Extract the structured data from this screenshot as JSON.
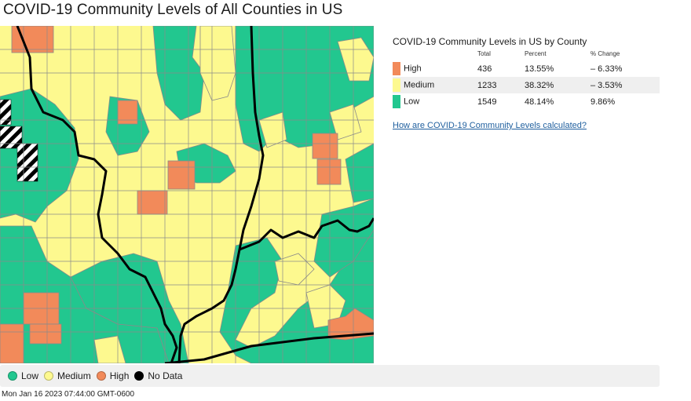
{
  "page": {
    "title": "COVID-19 Community Levels of All Counties in US"
  },
  "colors": {
    "high": "#f28a5a",
    "medium": "#fdf98f",
    "low": "#22c78f",
    "no_data": "#000000",
    "link": "#1f5f9e"
  },
  "summary": {
    "title": "COVID-19 Community Levels in US by County",
    "columns": [
      "Total",
      "Percent",
      "% Change"
    ],
    "rows": [
      {
        "level": "High",
        "total": "436",
        "percent": "13.55%",
        "change": "– 6.33%",
        "color": "#f28a5a"
      },
      {
        "level": "Medium",
        "total": "1233",
        "percent": "38.32%",
        "change": "– 3.53%",
        "color": "#fdf98f"
      },
      {
        "level": "Low",
        "total": "1549",
        "percent": "48.14%",
        "change": "9.86%",
        "color": "#22c78f"
      }
    ],
    "link_text": "How are COVID-19 Community Levels calculated?"
  },
  "legend": [
    {
      "label": "Low",
      "color": "#22c78f"
    },
    {
      "label": "Medium",
      "color": "#fdf98f"
    },
    {
      "label": "High",
      "color": "#f28a5a"
    },
    {
      "label": "No Data",
      "color": "#000000"
    }
  ],
  "timestamp": "Mon Jan 16 2023 07:44:00 GMT-0600"
}
